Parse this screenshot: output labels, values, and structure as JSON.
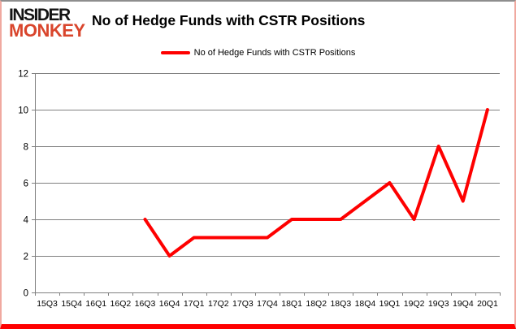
{
  "header": {
    "logo_line1": "INSIDER",
    "logo_line2": "MONKEY",
    "title": "No of Hedge Funds with CSTR Positions"
  },
  "legend": {
    "label": "No of Hedge Funds with CSTR Positions"
  },
  "colors": {
    "line": "#fe0000",
    "grid": "#808080",
    "axis": "#808080",
    "text": "#000000",
    "logo_black": "#141414",
    "logo_red": "#d9452c",
    "border_top": "#8e8e8e",
    "border_side": "#f0a9a0",
    "border_bottom": "#fe0000"
  },
  "chart_data": {
    "type": "line",
    "title": "No of Hedge Funds with CSTR Positions",
    "categories": [
      "15Q3",
      "15Q4",
      "16Q1",
      "16Q2",
      "16Q3",
      "16Q4",
      "17Q1",
      "17Q2",
      "17Q3",
      "17Q4",
      "18Q1",
      "18Q2",
      "18Q3",
      "18Q4",
      "19Q1",
      "19Q2",
      "19Q3",
      "19Q4",
      "20Q1"
    ],
    "series": [
      {
        "name": "No of Hedge Funds with CSTR Positions",
        "values": [
          null,
          null,
          null,
          null,
          4,
          2,
          3,
          3,
          3,
          3,
          4,
          4,
          4,
          5,
          6,
          4,
          8,
          5,
          10
        ]
      }
    ],
    "xlabel": "",
    "ylabel": "",
    "ylim": [
      0,
      12
    ],
    "yticks": [
      0,
      2,
      4,
      6,
      8,
      10,
      12
    ],
    "grid": true,
    "legend_position": "top-center"
  }
}
